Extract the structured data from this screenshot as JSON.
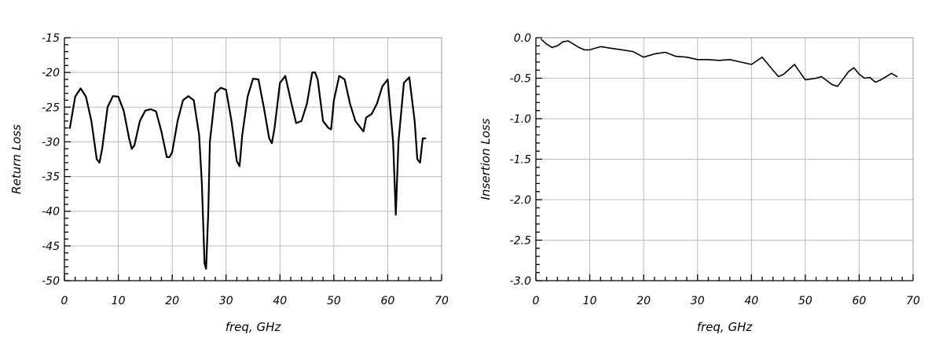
{
  "chart_data": [
    {
      "type": "line",
      "xlabel": "freq, GHz",
      "ylabel": "Return Loss",
      "xlim": [
        0,
        70
      ],
      "ylim": [
        -50,
        -15
      ],
      "x_ticks": [
        0,
        10,
        20,
        30,
        40,
        50,
        60,
        70
      ],
      "y_ticks": [
        -15,
        -20,
        -25,
        -30,
        -35,
        -40,
        -45,
        -50
      ],
      "x_tick_labels": [
        "0",
        "10",
        "20",
        "30",
        "40",
        "50",
        "60",
        "70"
      ],
      "y_tick_labels": [
        "-15",
        "-20",
        "-25",
        "-30",
        "-35",
        "-40",
        "-45",
        "-50"
      ],
      "grid": true,
      "series": [
        {
          "x": [
            1,
            2,
            3,
            4,
            5,
            6,
            6.5,
            7,
            8,
            9,
            10,
            11,
            12,
            12.5,
            13,
            14,
            15,
            16,
            17,
            18,
            19,
            19.5,
            20,
            21,
            22,
            23,
            24,
            25,
            25.5,
            26,
            26.3,
            26.7,
            27,
            28,
            29,
            30,
            31,
            32,
            32.5,
            33,
            34,
            35,
            36,
            37,
            38,
            38.5,
            39,
            40,
            41,
            42,
            43,
            44,
            45,
            46,
            46.5,
            47,
            48,
            49,
            49.5,
            50,
            51,
            52,
            53,
            54,
            55,
            55.5,
            56,
            57,
            58,
            59,
            60,
            61,
            61.5,
            62,
            63,
            64,
            65,
            65.5,
            66,
            66.5,
            67
          ],
          "y": [
            -28,
            -23.5,
            -22.3,
            -23.5,
            -27,
            -32.5,
            -33,
            -31,
            -25,
            -23.4,
            -23.5,
            -25.5,
            -29.5,
            -31,
            -30.5,
            -27,
            -25.5,
            -25.3,
            -25.6,
            -28.5,
            -32.2,
            -32.2,
            -31.5,
            -27,
            -24,
            -23.4,
            -24,
            -29,
            -36,
            -47.5,
            -48.3,
            -40,
            -30,
            -23,
            -22.2,
            -22.5,
            -27,
            -32.8,
            -33.5,
            -29,
            -23.5,
            -20.9,
            -21,
            -25,
            -29.5,
            -30.2,
            -28,
            -21.5,
            -20.5,
            -24,
            -27.3,
            -27,
            -24.5,
            -20,
            -20,
            -21,
            -27,
            -28,
            -28.2,
            -24,
            -20.5,
            -21,
            -24.5,
            -27,
            -28,
            -28.5,
            -26.5,
            -26,
            -24.5,
            -22,
            -21,
            -30,
            -40.5,
            -30,
            -21.5,
            -20.7,
            -27,
            -32.5,
            -33,
            -29.5,
            -29.5
          ]
        }
      ]
    },
    {
      "type": "line",
      "xlabel": "freq, GHz",
      "ylabel": "Insertion Loss",
      "xlim": [
        0,
        70
      ],
      "ylim": [
        -3.0,
        0.0
      ],
      "x_ticks": [
        0,
        10,
        20,
        30,
        40,
        50,
        60,
        70
      ],
      "y_ticks": [
        0.0,
        -0.5,
        -1.0,
        -1.5,
        -2.0,
        -2.5,
        -3.0
      ],
      "x_tick_labels": [
        "0",
        "10",
        "20",
        "30",
        "40",
        "50",
        "60",
        "70"
      ],
      "y_tick_labels": [
        "0.0",
        "-0.5",
        "-1.0",
        "-1.5",
        "-2.0",
        "-2.5",
        "-3.0"
      ],
      "grid": true,
      "series": [
        {
          "x": [
            1,
            2,
            3,
            4,
            5,
            6,
            7,
            8,
            9,
            10,
            11,
            12,
            14,
            16,
            18,
            20,
            22,
            24,
            26,
            28,
            30,
            32,
            34,
            36,
            38,
            40,
            42,
            44,
            45,
            46,
            48,
            50,
            52,
            53,
            54,
            55,
            56,
            58,
            59,
            60,
            61,
            62,
            63,
            64,
            65,
            66,
            67
          ],
          "y": [
            -0.02,
            -0.08,
            -0.12,
            -0.1,
            -0.05,
            -0.04,
            -0.08,
            -0.12,
            -0.15,
            -0.15,
            -0.13,
            -0.11,
            -0.13,
            -0.15,
            -0.17,
            -0.24,
            -0.2,
            -0.18,
            -0.23,
            -0.24,
            -0.27,
            -0.27,
            -0.28,
            -0.27,
            -0.3,
            -0.33,
            -0.24,
            -0.4,
            -0.48,
            -0.45,
            -0.33,
            -0.52,
            -0.5,
            -0.48,
            -0.53,
            -0.58,
            -0.6,
            -0.42,
            -0.37,
            -0.45,
            -0.5,
            -0.49,
            -0.55,
            -0.52,
            -0.48,
            -0.44,
            -0.48
          ]
        }
      ]
    }
  ]
}
